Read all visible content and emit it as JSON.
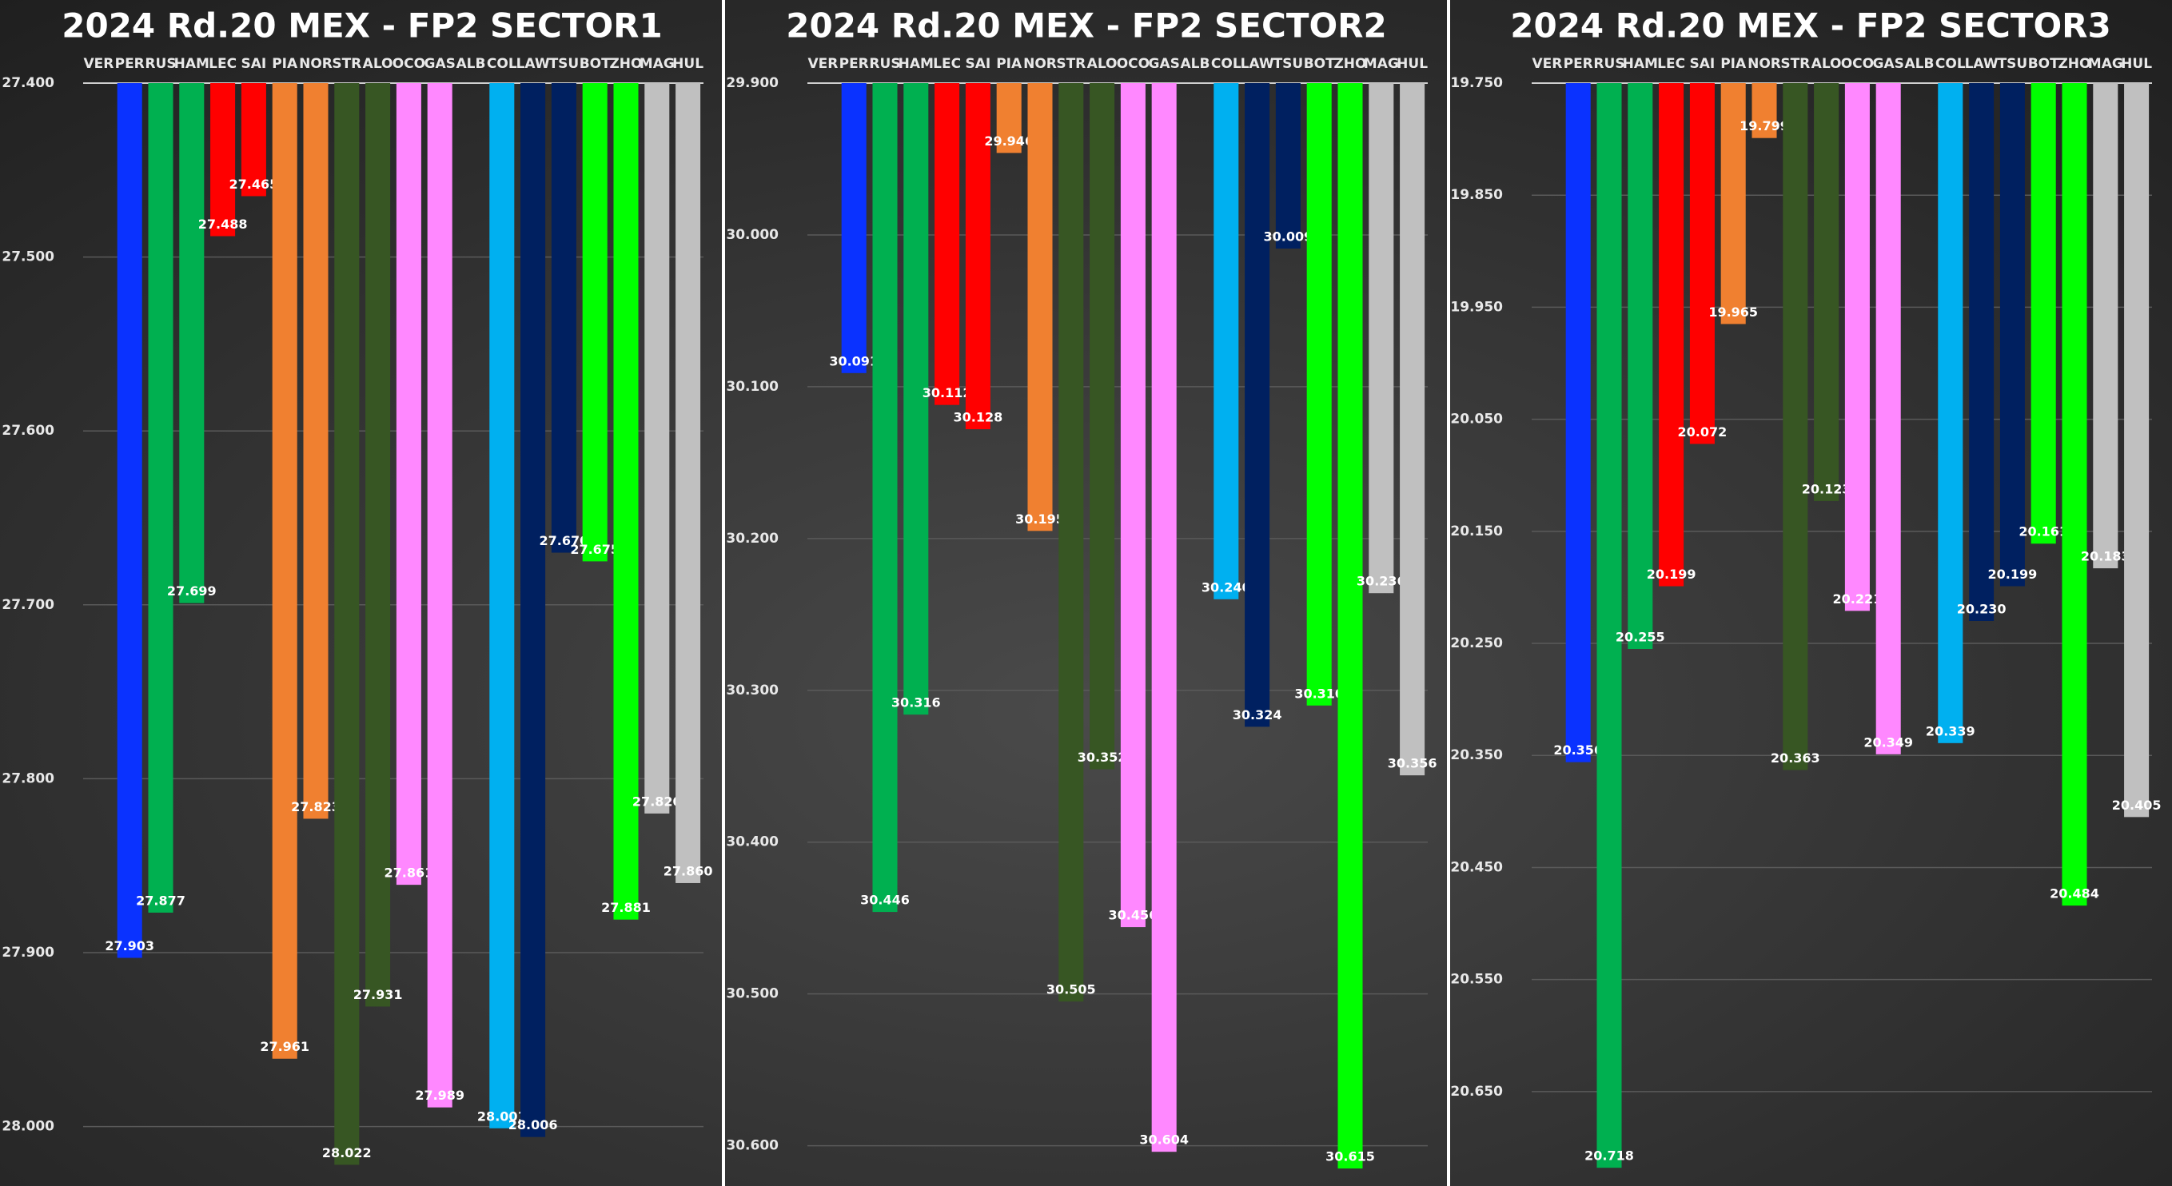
{
  "chart_data": [
    {
      "type": "bar",
      "title": "2024 Rd.20 MEX - FP2 SECTOR1",
      "categories": [
        "VER",
        "PER",
        "RUS",
        "HAM",
        "LEC",
        "SAI",
        "PIA",
        "NOR",
        "STR",
        "ALO",
        "OCO",
        "GAS",
        "ALB",
        "COL",
        "LAW",
        "TSU",
        "BOT",
        "ZHO",
        "MAG",
        "HUL"
      ],
      "values": [
        null,
        27.903,
        27.877,
        27.699,
        27.488,
        27.465,
        27.961,
        27.823,
        28.022,
        27.931,
        27.861,
        27.989,
        null,
        28.001,
        28.006,
        27.67,
        27.675,
        27.881,
        27.82,
        27.86
      ],
      "value_labels": [
        null,
        "27.903",
        "27.877",
        "27.699",
        "27.488",
        "27.465",
        "27.961",
        "27.823",
        "28.022",
        "27.931",
        "27.861",
        "27.989",
        null,
        "28.001",
        "28.006",
        "27.670",
        "27.675",
        "27.881",
        "27.820",
        "27.860"
      ],
      "colors": [
        "#808080",
        "#0a32ff",
        "#00b050",
        "#00b050",
        "#ff0000",
        "#ff0000",
        "#f08030",
        "#f08030",
        "#375623",
        "#375623",
        "#ff88ff",
        "#ff88ff",
        "#808080",
        "#00b0f0",
        "#002060",
        "#002060",
        "#00ff00",
        "#00ff00",
        "#c0c0c0",
        "#c0c0c0"
      ],
      "ylim": [
        27.4,
        28.025
      ],
      "inverted": true,
      "grid": true,
      "yticks": [
        {
          "value": 27.4,
          "label": "27.400"
        },
        {
          "value": 27.5,
          "label": "27.500"
        },
        {
          "value": 27.6,
          "label": "27.600"
        },
        {
          "value": 27.7,
          "label": "27.700"
        },
        {
          "value": 27.8,
          "label": "27.800"
        },
        {
          "value": 27.9,
          "label": "27.900"
        },
        {
          "value": 28.0,
          "label": "28.000"
        }
      ]
    },
    {
      "type": "bar",
      "title": "2024 Rd.20 MEX - FP2 SECTOR2",
      "categories": [
        "VER",
        "PER",
        "RUS",
        "HAM",
        "LEC",
        "SAI",
        "PIA",
        "NOR",
        "STR",
        "ALO",
        "OCO",
        "GAS",
        "ALB",
        "COL",
        "LAW",
        "TSU",
        "BOT",
        "ZHO",
        "MAG",
        "HUL"
      ],
      "values": [
        null,
        30.091,
        30.446,
        30.316,
        30.112,
        30.128,
        29.946,
        30.195,
        30.505,
        30.352,
        30.456,
        30.604,
        null,
        30.24,
        30.324,
        30.009,
        30.31,
        30.615,
        30.236,
        30.356
      ],
      "value_labels": [
        null,
        "30.091",
        "30.446",
        "30.316",
        "30.112",
        "30.128",
        "29.946",
        "30.195",
        "30.505",
        "30.352",
        "30.456",
        "30.604",
        null,
        "30.240",
        "30.324",
        "30.009",
        "30.310",
        "30.615",
        "30.236",
        "30.356"
      ],
      "colors": [
        "#808080",
        "#0a32ff",
        "#00b050",
        "#00b050",
        "#ff0000",
        "#ff0000",
        "#f08030",
        "#f08030",
        "#375623",
        "#375623",
        "#ff88ff",
        "#ff88ff",
        "#808080",
        "#00b0f0",
        "#002060",
        "#002060",
        "#00ff00",
        "#00ff00",
        "#c0c0c0",
        "#c0c0c0"
      ],
      "ylim": [
        29.9,
        30.616
      ],
      "inverted": true,
      "grid": true,
      "yticks": [
        {
          "value": 29.9,
          "label": "29.900"
        },
        {
          "value": 30.0,
          "label": "30.000"
        },
        {
          "value": 30.1,
          "label": "30.100"
        },
        {
          "value": 30.2,
          "label": "30.200"
        },
        {
          "value": 30.3,
          "label": "30.300"
        },
        {
          "value": 30.4,
          "label": "30.400"
        },
        {
          "value": 30.5,
          "label": "30.500"
        },
        {
          "value": 30.6,
          "label": "30.600"
        }
      ]
    },
    {
      "type": "bar",
      "title": "2024 Rd.20 MEX - FP2 SECTOR3",
      "categories": [
        "VER",
        "PER",
        "RUS",
        "HAM",
        "LEC",
        "SAI",
        "PIA",
        "NOR",
        "STR",
        "ALO",
        "OCO",
        "GAS",
        "ALB",
        "COL",
        "LAW",
        "TSU",
        "BOT",
        "ZHO",
        "MAG",
        "HUL"
      ],
      "values": [
        null,
        20.356,
        20.718,
        20.255,
        20.199,
        20.072,
        19.965,
        19.799,
        20.363,
        20.123,
        20.221,
        20.349,
        null,
        20.339,
        20.23,
        20.199,
        20.161,
        20.484,
        20.183,
        20.405
      ],
      "value_labels": [
        null,
        "20.356",
        "20.718",
        "20.255",
        "20.199",
        "20.072",
        "19.965",
        "19.799",
        "20.363",
        "20.123",
        "20.221",
        "20.349",
        null,
        "20.339",
        "20.230",
        "20.199",
        "20.161",
        "20.484",
        "20.183",
        "20.405"
      ],
      "colors": [
        "#808080",
        "#0a32ff",
        "#00b050",
        "#00b050",
        "#ff0000",
        "#ff0000",
        "#f08030",
        "#f08030",
        "#375623",
        "#375623",
        "#ff88ff",
        "#ff88ff",
        "#808080",
        "#00b0f0",
        "#002060",
        "#002060",
        "#00ff00",
        "#00ff00",
        "#c0c0c0",
        "#c0c0c0"
      ],
      "ylim": [
        19.75,
        20.72
      ],
      "inverted": true,
      "grid": true,
      "yticks": [
        {
          "value": 19.75,
          "label": "19.750"
        },
        {
          "value": 19.85,
          "label": "19.850"
        },
        {
          "value": 19.95,
          "label": "19.950"
        },
        {
          "value": 20.05,
          "label": "20.050"
        },
        {
          "value": 20.15,
          "label": "20.150"
        },
        {
          "value": 20.25,
          "label": "20.250"
        },
        {
          "value": 20.35,
          "label": "20.350"
        },
        {
          "value": 20.45,
          "label": "20.450"
        },
        {
          "value": 20.55,
          "label": "20.550"
        },
        {
          "value": 20.65,
          "label": "20.650"
        }
      ]
    }
  ]
}
